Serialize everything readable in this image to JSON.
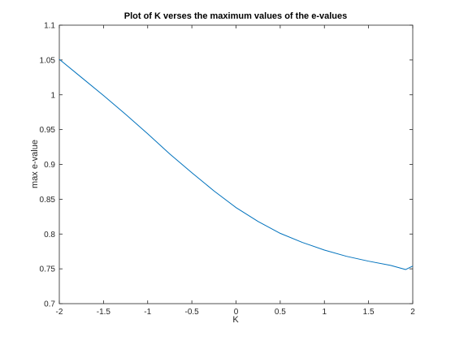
{
  "chart_data": {
    "type": "line",
    "title": "Plot of K verses the maximum values of the e-values",
    "xlabel": "K",
    "ylabel": "max e-value",
    "xlim": [
      -2,
      2
    ],
    "ylim": [
      0.7,
      1.1
    ],
    "xticks": [
      -2,
      -1.5,
      -1,
      -0.5,
      0,
      0.5,
      1,
      1.5,
      2
    ],
    "xtick_labels": [
      "-2",
      "-1.5",
      "-1",
      "-0.5",
      "0",
      "0.5",
      "1",
      "1.5",
      "2"
    ],
    "yticks": [
      0.7,
      0.75,
      0.8,
      0.85,
      0.9,
      0.95,
      1,
      1.05,
      1.1
    ],
    "ytick_labels": [
      "0.7",
      "0.75",
      "0.8",
      "0.85",
      "0.9",
      "0.95",
      "1",
      "1.05",
      "1.1"
    ],
    "grid": false,
    "series": [
      {
        "color": "#0072BD",
        "x": [
          -2,
          -1.75,
          -1.5,
          -1.25,
          -1,
          -0.75,
          -0.5,
          -0.25,
          0,
          0.25,
          0.5,
          0.75,
          1,
          1.25,
          1.5,
          1.75,
          1.92,
          2
        ],
        "y": [
          1.051,
          1.025,
          0.999,
          0.972,
          0.944,
          0.915,
          0.888,
          0.862,
          0.838,
          0.818,
          0.801,
          0.788,
          0.777,
          0.768,
          0.761,
          0.755,
          0.749,
          0.754
        ]
      }
    ]
  }
}
